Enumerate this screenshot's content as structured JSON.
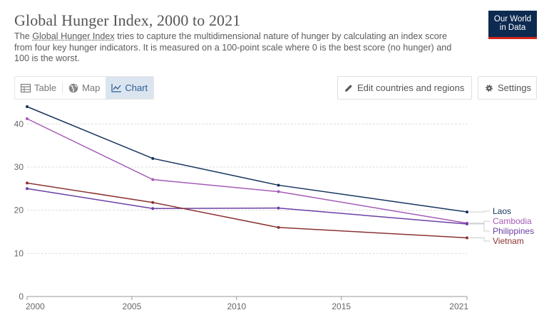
{
  "header": {
    "title": "Global Hunger Index, 2000 to 2021",
    "subtitle_pre": "The ",
    "subtitle_link": "Global Hunger Index",
    "subtitle_post": " tries to capture the multidimensional nature of hunger by calculating an index score from four key hunger indicators. It is measured on a 100-point scale where 0 is the best score (no hunger) and 100 is the worst."
  },
  "logo": {
    "line1": "Our World",
    "line2": "in Data"
  },
  "tabs": [
    {
      "label": "Table",
      "icon": "table-icon"
    },
    {
      "label": "Map",
      "icon": "globe-icon"
    },
    {
      "label": "Chart",
      "icon": "line-chart-icon",
      "active": true
    }
  ],
  "toolbar": {
    "edit_label": "Edit countries and regions",
    "settings_label": "Settings"
  },
  "colors": {
    "Laos": "#15335e",
    "Cambodia": "#a55bb6",
    "Philippines": "#6b3fa6",
    "Vietnam": "#8c3232"
  },
  "chart_data": {
    "type": "line",
    "title": "Global Hunger Index, 2000 to 2021",
    "xlabel": "",
    "ylabel": "",
    "xlim": [
      2000,
      2021
    ],
    "ylim": [
      0,
      44
    ],
    "xticks": [
      2000,
      2005,
      2010,
      2015,
      2021
    ],
    "yticks": [
      0,
      10,
      20,
      30,
      40
    ],
    "grid": true,
    "legend": "right",
    "x": [
      2000,
      2006,
      2012,
      2021
    ],
    "series": [
      {
        "name": "Laos",
        "values": [
          44.0,
          32.0,
          25.8,
          19.6
        ]
      },
      {
        "name": "Cambodia",
        "values": [
          41.2,
          27.1,
          24.3,
          17.0
        ]
      },
      {
        "name": "Philippines",
        "values": [
          25.0,
          20.4,
          20.5,
          16.8
        ]
      },
      {
        "name": "Vietnam",
        "values": [
          26.3,
          21.8,
          16.0,
          13.6
        ]
      }
    ]
  }
}
